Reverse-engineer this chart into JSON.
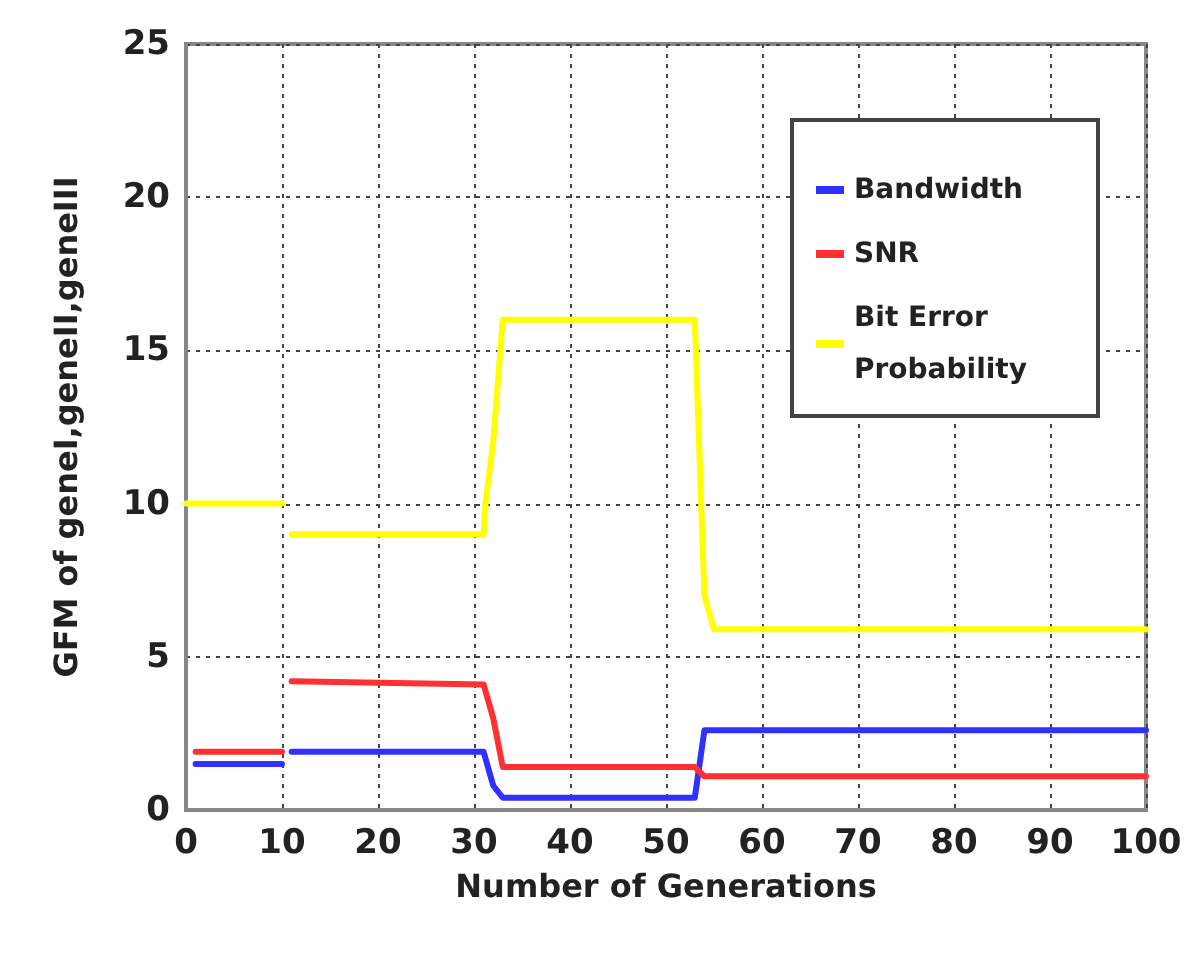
{
  "chart_data": {
    "type": "line",
    "xlabel": "Number of Generations",
    "ylabel": "GFM of geneI,geneII,geneIII",
    "xlim": [
      0,
      100
    ],
    "xticks": [
      0,
      10,
      20,
      30,
      40,
      50,
      60,
      70,
      80,
      90,
      100
    ],
    "ylim": [
      0,
      25
    ],
    "yticks": [
      0,
      5,
      10,
      15,
      20,
      25
    ],
    "grid": true,
    "legend": "top right",
    "line_style": "solid",
    "marker": "none",
    "series": [
      {
        "name": "Bandwidth",
        "color": "#3030ff",
        "x": [
          1,
          10,
          10.5,
          11,
          31,
          32,
          33,
          53,
          54,
          100
        ],
        "values": [
          1.5,
          1.5,
          null,
          1.9,
          1.9,
          0.8,
          0.4,
          0.4,
          2.6,
          2.6
        ]
      },
      {
        "name": "SNR",
        "color": "#ff3030",
        "x": [
          1,
          10,
          10.5,
          11,
          31,
          32,
          33,
          53,
          54,
          100
        ],
        "values": [
          1.9,
          1.9,
          null,
          4.2,
          4.1,
          3,
          1.4,
          1.4,
          1.1,
          1.1
        ]
      },
      {
        "name": "Bit Error Probability",
        "color": "#ffff00",
        "x": [
          0,
          10,
          10.5,
          11,
          31,
          31.2,
          32,
          33,
          53,
          54,
          55,
          100
        ],
        "values": [
          10,
          10,
          null,
          9,
          9,
          10,
          12,
          16,
          16,
          7,
          5.9,
          5.9
        ]
      }
    ]
  }
}
